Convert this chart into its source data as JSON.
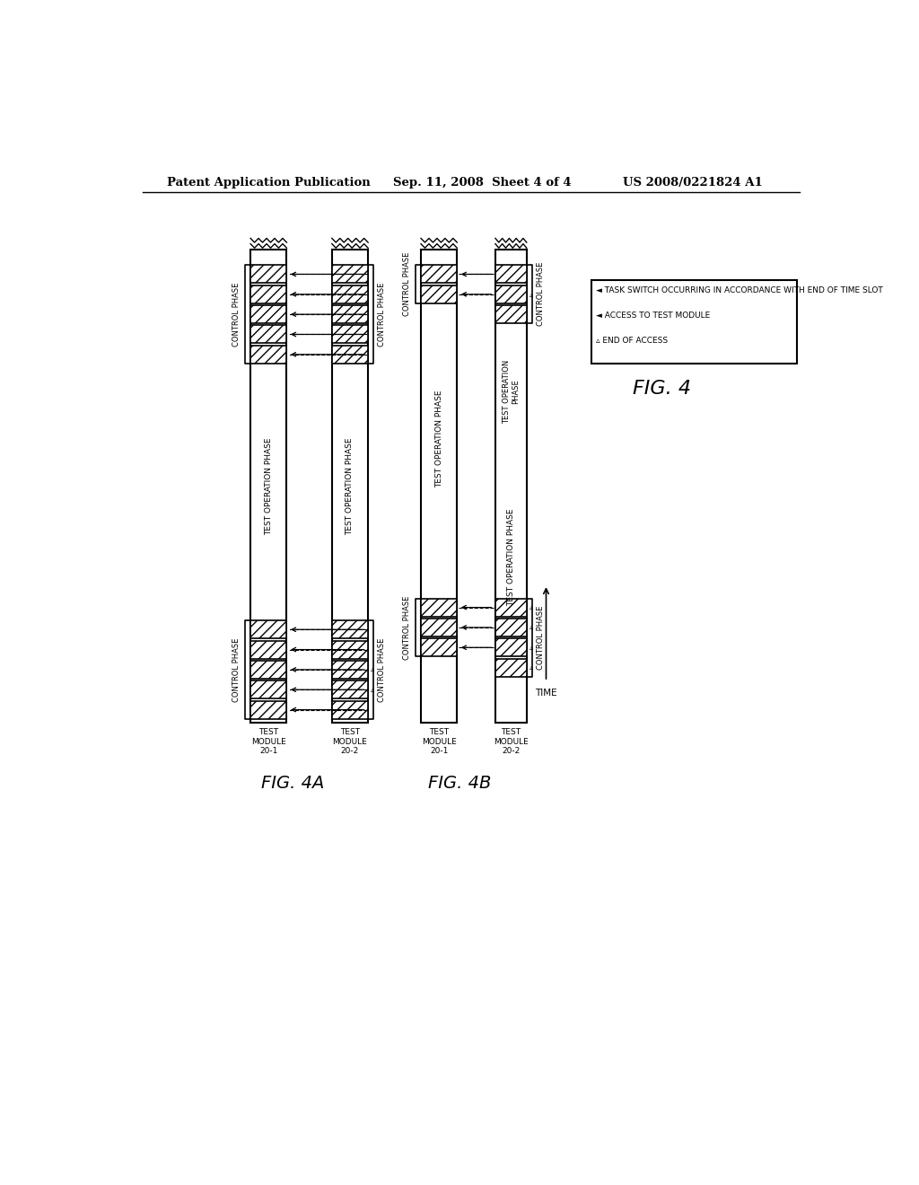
{
  "bg_color": "#ffffff",
  "header_left": "Patent Application Publication",
  "header_mid": "Sep. 11, 2008  Sheet 4 of 4",
  "header_right": "US 2008/0221824 A1",
  "fig4a_label": "FIG. 4A",
  "fig4b_label": "FIG. 4B",
  "fig4_label": "FIG. 4",
  "legend_lines": [
    "◄ TASK SWITCH OCCURRING IN ACCORDANCE WITH END OF TIME SLOT",
    "◄ ACCESS TO TEST MODULE",
    "▵ END OF ACCESS"
  ],
  "time_label": "TIME"
}
